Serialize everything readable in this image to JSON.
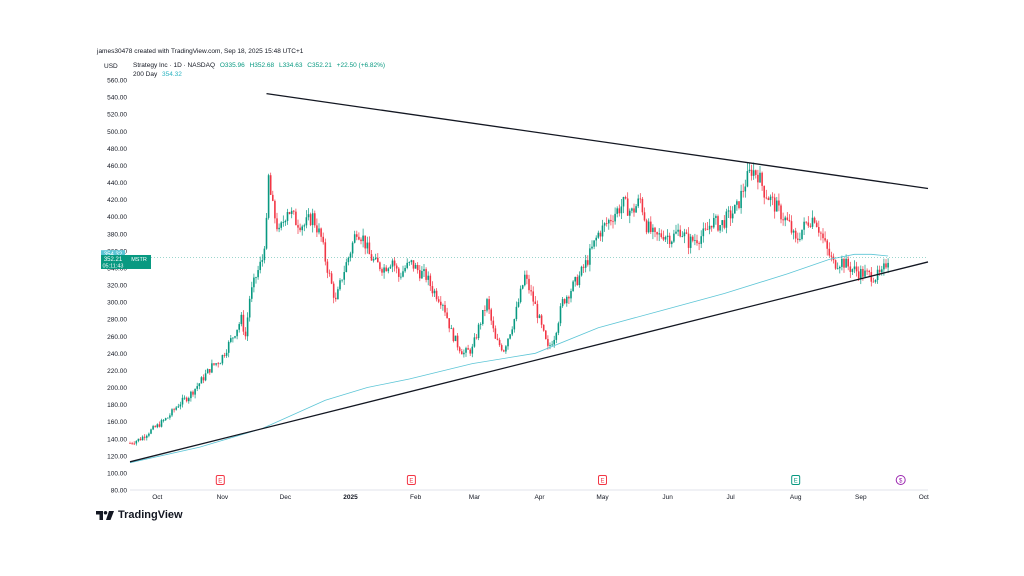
{
  "header": {
    "text": "james30478 created with TradingView.com, Sep 18, 2025 15:48 UTC+1"
  },
  "currency": "USD",
  "legend": {
    "symbol": "Strategy Inc · 1D · NASDAQ",
    "open": "O335.96",
    "high": "H352.68",
    "low": "L334.63",
    "close": "C352.21",
    "change": "+22.50 (+6.82%)",
    "ma_label": "200 Day",
    "ma_value": "354.32"
  },
  "price_tags": {
    "ma": "354.32",
    "last": "352.21",
    "ticker": "MSTR",
    "countdown": "05:11:43"
  },
  "logo": {
    "text": "TradingView"
  },
  "colors": {
    "up": "#089981",
    "down": "#f23645",
    "ma": "#5cc5d6",
    "trendline": "#131722",
    "event": "#f23645",
    "event_earnings": "#089981"
  },
  "chart_data": {
    "type": "candlestick",
    "ylim": [
      80,
      560
    ],
    "y_ticks": [
      80,
      100,
      120,
      140,
      160,
      180,
      200,
      220,
      240,
      260,
      280,
      300,
      320,
      340,
      360,
      380,
      400,
      420,
      440,
      460,
      480,
      500,
      520,
      540,
      560
    ],
    "x_ticks": [
      {
        "label": "Oct",
        "day": 0
      },
      {
        "label": "Nov",
        "day": 31
      },
      {
        "label": "Dec",
        "day": 61
      },
      {
        "label": "2025",
        "day": 92
      },
      {
        "label": "Feb",
        "day": 123
      },
      {
        "label": "Mar",
        "day": 151
      },
      {
        "label": "Apr",
        "day": 182
      },
      {
        "label": "May",
        "day": 212
      },
      {
        "label": "Jun",
        "day": 243
      },
      {
        "label": "Jul",
        "day": 273
      },
      {
        "label": "Aug",
        "day": 304
      },
      {
        "label": "Sep",
        "day": 335
      },
      {
        "label": "Oct",
        "day": 365
      }
    ],
    "x_range_days": [
      -13,
      367
    ],
    "price_anchors": [
      [
        -13,
        135
      ],
      [
        -8,
        140
      ],
      [
        -4,
        148
      ],
      [
        0,
        155
      ],
      [
        5,
        165
      ],
      [
        10,
        180
      ],
      [
        15,
        190
      ],
      [
        20,
        205
      ],
      [
        26,
        225
      ],
      [
        30,
        232
      ],
      [
        36,
        260
      ],
      [
        40,
        280
      ],
      [
        42,
        260
      ],
      [
        44,
        305
      ],
      [
        47,
        330
      ],
      [
        50,
        350
      ],
      [
        52,
        390
      ],
      [
        53,
        445
      ],
      [
        54,
        425
      ],
      [
        55,
        410
      ],
      [
        58,
        380
      ],
      [
        60,
        395
      ],
      [
        62,
        410
      ],
      [
        66,
        395
      ],
      [
        70,
        390
      ],
      [
        74,
        400
      ],
      [
        78,
        375
      ],
      [
        80,
        350
      ],
      [
        83,
        320
      ],
      [
        85,
        300
      ],
      [
        88,
        330
      ],
      [
        92,
        360
      ],
      [
        95,
        385
      ],
      [
        98,
        375
      ],
      [
        101,
        355
      ],
      [
        104,
        345
      ],
      [
        108,
        340
      ],
      [
        112,
        350
      ],
      [
        115,
        330
      ],
      [
        118,
        340
      ],
      [
        121,
        345
      ],
      [
        125,
        335
      ],
      [
        128,
        330
      ],
      [
        131,
        315
      ],
      [
        136,
        300
      ],
      [
        140,
        265
      ],
      [
        143,
        250
      ],
      [
        146,
        240
      ],
      [
        150,
        245
      ],
      [
        153,
        270
      ],
      [
        157,
        300
      ],
      [
        161,
        255
      ],
      [
        165,
        245
      ],
      [
        170,
        280
      ],
      [
        175,
        330
      ],
      [
        180,
        295
      ],
      [
        183,
        270
      ],
      [
        186,
        245
      ],
      [
        189,
        260
      ],
      [
        193,
        300
      ],
      [
        197,
        315
      ],
      [
        201,
        330
      ],
      [
        205,
        350
      ],
      [
        210,
        380
      ],
      [
        215,
        395
      ],
      [
        218,
        405
      ],
      [
        222,
        415
      ],
      [
        226,
        405
      ],
      [
        230,
        420
      ],
      [
        233,
        390
      ],
      [
        237,
        375
      ],
      [
        241,
        380
      ],
      [
        245,
        375
      ],
      [
        249,
        385
      ],
      [
        253,
        370
      ],
      [
        257,
        375
      ],
      [
        261,
        380
      ],
      [
        264,
        395
      ],
      [
        268,
        390
      ],
      [
        272,
        400
      ],
      [
        276,
        410
      ],
      [
        280,
        440
      ],
      [
        283,
        455
      ],
      [
        286,
        450
      ],
      [
        289,
        430
      ],
      [
        292,
        420
      ],
      [
        295,
        410
      ],
      [
        298,
        400
      ],
      [
        301,
        390
      ],
      [
        304,
        370
      ],
      [
        307,
        385
      ],
      [
        310,
        395
      ],
      [
        313,
        400
      ],
      [
        316,
        380
      ],
      [
        319,
        360
      ],
      [
        322,
        345
      ],
      [
        326,
        348
      ],
      [
        330,
        340
      ],
      [
        334,
        335
      ],
      [
        338,
        332
      ],
      [
        342,
        330
      ],
      [
        345,
        332
      ],
      [
        348,
        352
      ]
    ],
    "ma_200": [
      [
        -13,
        112
      ],
      [
        20,
        130
      ],
      [
        50,
        152
      ],
      [
        80,
        185
      ],
      [
        100,
        200
      ],
      [
        120,
        210
      ],
      [
        150,
        228
      ],
      [
        180,
        240
      ],
      [
        210,
        270
      ],
      [
        240,
        290
      ],
      [
        270,
        310
      ],
      [
        300,
        333
      ],
      [
        320,
        350
      ],
      [
        332,
        356
      ],
      [
        340,
        356
      ],
      [
        348,
        354
      ]
    ],
    "trendlines": [
      {
        "from": [
          52,
          544
        ],
        "to": [
          367,
          433
        ]
      },
      {
        "from": [
          -13,
          113
        ],
        "to": [
          367,
          347
        ]
      }
    ],
    "events": [
      {
        "day": 30,
        "label": "E",
        "kind": "earnings"
      },
      {
        "day": 121,
        "label": "E",
        "kind": "earnings"
      },
      {
        "day": 212,
        "label": "E",
        "kind": "earnings"
      },
      {
        "day": 304,
        "label": "E",
        "kind": "earnings_beat"
      },
      {
        "day": 354,
        "label": "$",
        "kind": "dividend"
      }
    ]
  }
}
